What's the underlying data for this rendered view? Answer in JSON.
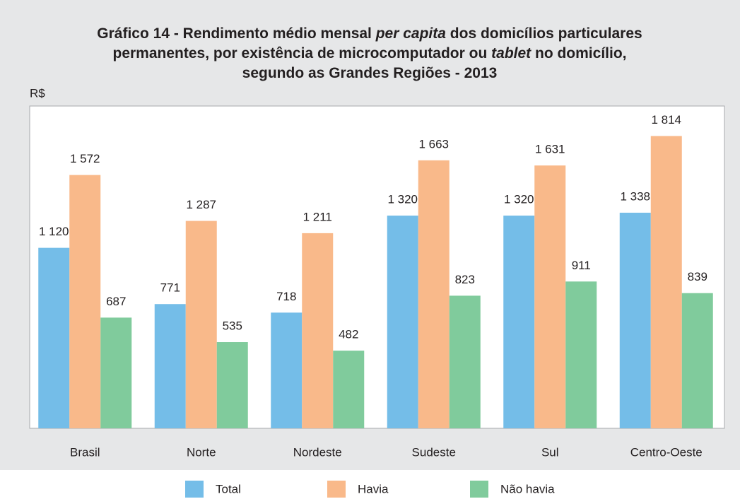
{
  "chart_data": {
    "type": "bar",
    "title": [
      [
        "Gráfico 14 - Rendimento médio mensal ",
        "per capita",
        " dos domicílios particulares"
      ],
      [
        "permanentes, por existência de microcomputador ou ",
        "tablet",
        " no domicílio,"
      ],
      [
        "segundo as Grandes Regiões - 2013"
      ]
    ],
    "y_label": "R$",
    "categories": [
      "Brasil",
      "Norte",
      "Nordeste",
      "Sudeste",
      "Sul",
      "Centro-Oeste"
    ],
    "series": [
      {
        "name": "Total",
        "color": "#74bde8",
        "values": [
          1120,
          771,
          718,
          1320,
          1320,
          1338
        ],
        "value_labels": [
          "1 120",
          "771",
          "718",
          "1 320",
          "1 320",
          "1 338"
        ]
      },
      {
        "name": "Havia",
        "color": "#f9b98a",
        "values": [
          1572,
          1287,
          1211,
          1663,
          1631,
          1814
        ],
        "value_labels": [
          "1 572",
          "1 287",
          "1 211",
          "1 663",
          "1 631",
          "1 814"
        ]
      },
      {
        "name": "Não havia",
        "color": "#80cb9c",
        "values": [
          687,
          535,
          482,
          823,
          911,
          839
        ],
        "value_labels": [
          "687",
          "535",
          "482",
          "823",
          "911",
          "839"
        ]
      }
    ],
    "ylim": [
      0,
      2000
    ]
  }
}
